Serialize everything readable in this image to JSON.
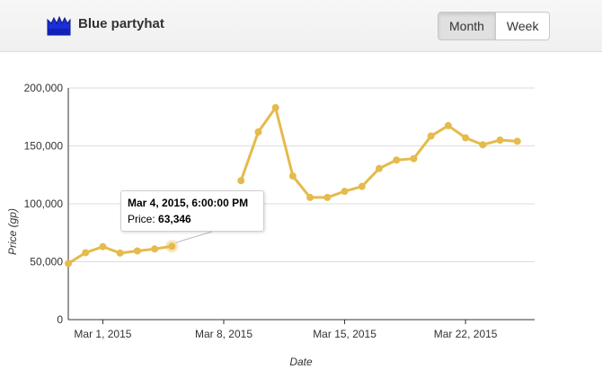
{
  "header": {
    "title": "Blue partyhat",
    "icon": "blue-partyhat-icon",
    "icon_color": "#1c2fd6",
    "buttons": [
      "Month",
      "Week"
    ],
    "active_button": "Month"
  },
  "tooltip": {
    "date": "Mar 4, 2015, 6:00:00 PM",
    "label": "Price:",
    "value": "63,346"
  },
  "colors": {
    "series": "#e4bb4c",
    "grid": "#dddddd"
  },
  "chart_data": {
    "type": "line",
    "xlabel": "Date",
    "ylabel": "Price (gp)",
    "ylim": [
      0,
      200000
    ],
    "yticks": [
      "0",
      "50,000",
      "100,000",
      "150,000",
      "200,000"
    ],
    "xticks": [
      "Mar 1, 2015",
      "Mar 8, 2015",
      "Mar 15, 2015",
      "Mar 22, 2015"
    ],
    "grid": true,
    "series": [
      {
        "x": [
          "2015-02-27",
          "2015-02-28",
          "2015-03-01",
          "2015-03-02",
          "2015-03-03",
          "2015-03-04",
          "2015-03-05",
          "2015-03-06",
          "2015-03-07",
          "2015-03-08",
          "2015-03-09",
          "2015-03-10",
          "2015-03-11",
          "2015-03-12",
          "2015-03-13",
          "2015-03-14",
          "2015-03-15",
          "2015-03-16",
          "2015-03-17",
          "2015-03-18",
          "2015-03-19",
          "2015-03-20",
          "2015-03-21",
          "2015-03-22",
          "2015-03-23",
          "2015-03-24",
          "2015-03-25",
          "2015-03-26"
        ],
        "values": [
          48500,
          57800,
          63000,
          57500,
          59300,
          61000,
          63346,
          null,
          null,
          null,
          120000,
          162000,
          183000,
          124000,
          105500,
          105500,
          110800,
          115000,
          130500,
          137800,
          139000,
          158500,
          167500,
          157000,
          151000,
          155000,
          154000,
          null
        ]
      }
    ]
  }
}
